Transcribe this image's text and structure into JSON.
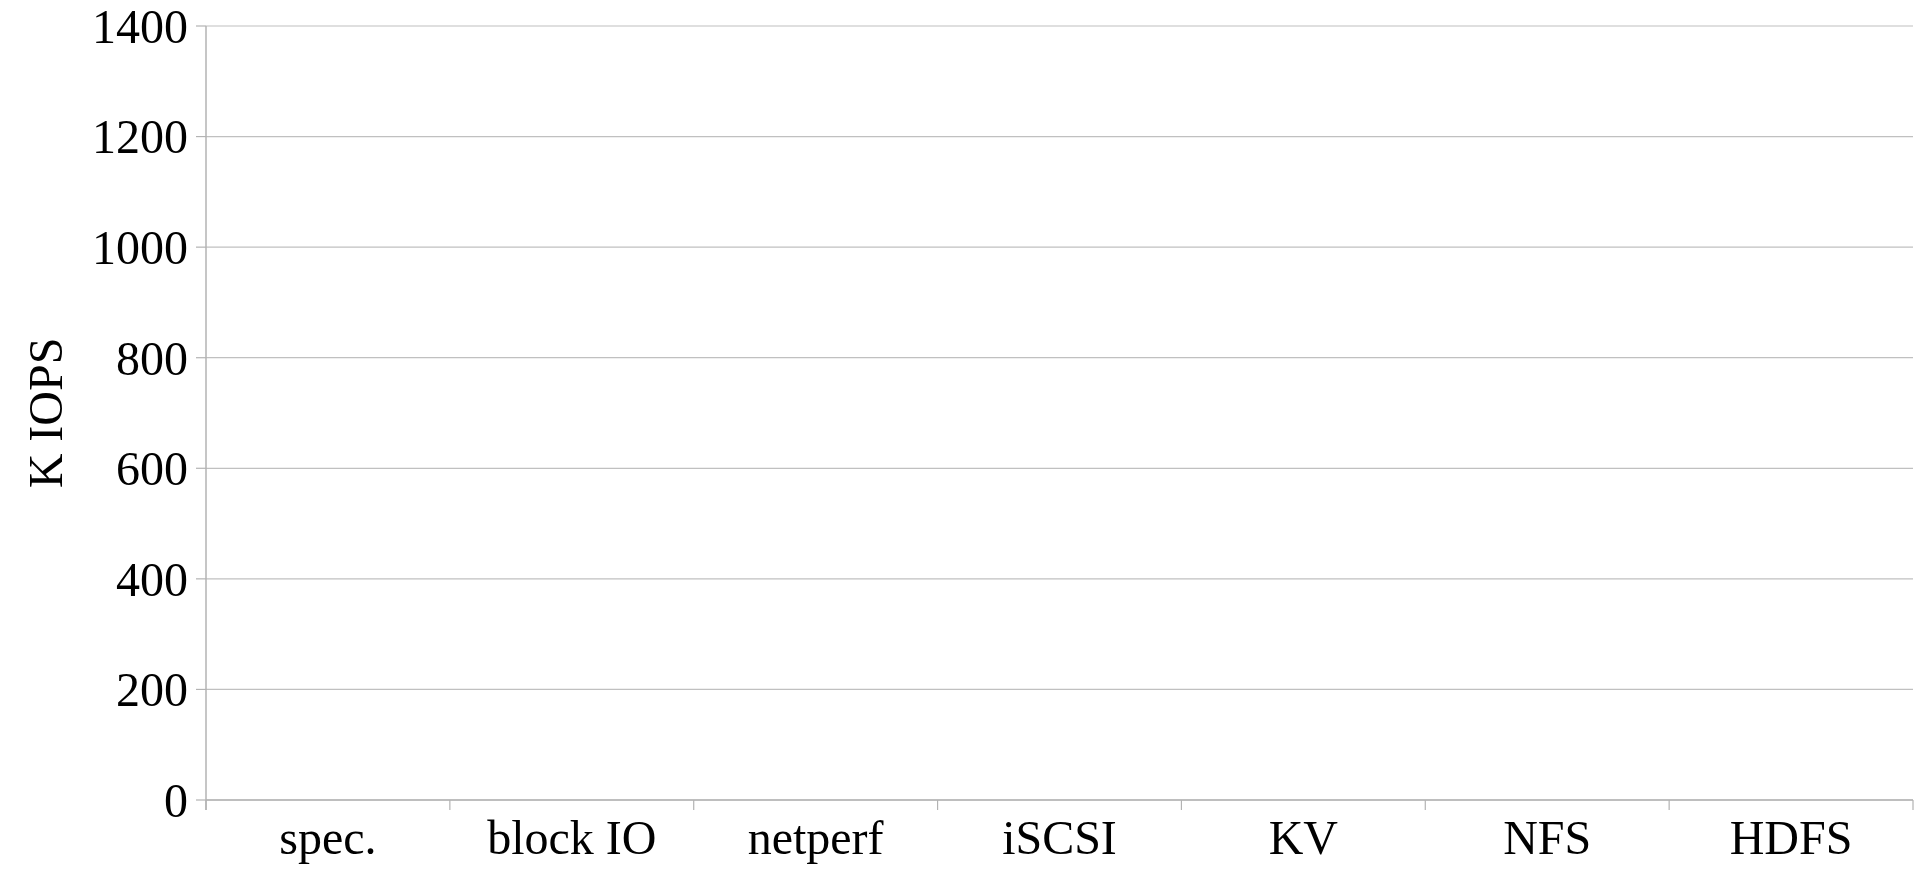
{
  "chart_data": {
    "type": "bar",
    "ylabel": "K IOPS",
    "categories": [
      "spec.",
      "block IO",
      "netperf",
      "iSCSI",
      "KV",
      "NFS",
      "HDFS"
    ],
    "values": [
      null,
      null,
      null,
      null,
      null,
      null,
      null
    ],
    "ylim": [
      0,
      1400
    ],
    "yticks": [
      0,
      200,
      400,
      600,
      800,
      1000,
      1200,
      1400
    ],
    "grid": "y"
  }
}
